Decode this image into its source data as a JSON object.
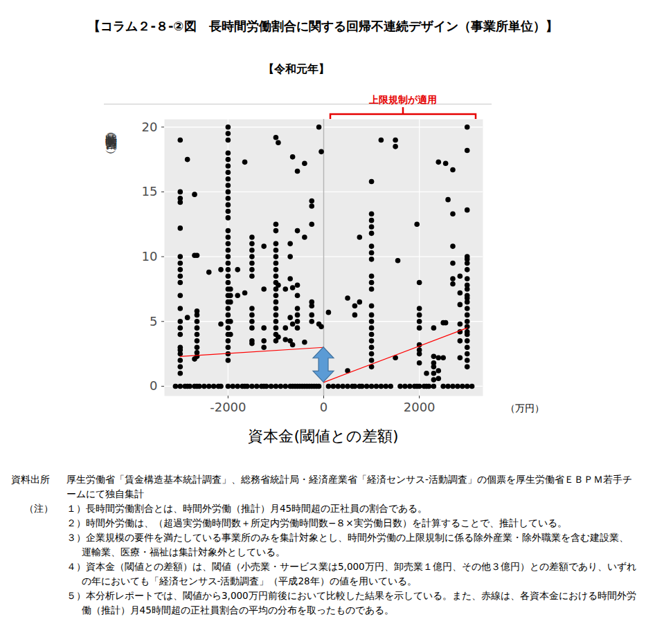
{
  "chart_data": {
    "type": "scatter",
    "title": "【コラム２-８-②図　長時間労働割合に関する回帰不連続デザイン（事業所単位）】",
    "subtitle": "【令和元年】",
    "annotation": "上限規制が適用",
    "x_label": "資本金(閾値との差額)",
    "x_unit": "（万円）",
    "y_label": "長時間労働割合（％）",
    "threshold": 0,
    "xlim": [
      -3330,
      3330
    ],
    "ylim": [
      -0.75,
      20.6
    ],
    "xticks": [
      -2000,
      0,
      2000
    ],
    "yticks": [
      0,
      5,
      10,
      15,
      20
    ],
    "grid": true,
    "series": [
      {
        "type": "scatter",
        "color": "#000000",
        "marker": "circle",
        "x": [
          -3000,
          -3000,
          -3000,
          -3000,
          -3000,
          -3000,
          -3000,
          -3000,
          -3000,
          -3000,
          -3000,
          -3000,
          -3000,
          -3000,
          -3000,
          -3000,
          -3000,
          -3000,
          -3000,
          -3000,
          -3000,
          -3000,
          -2850,
          -2850,
          -2850,
          -2700,
          -2700,
          -2700,
          -2700,
          -2650,
          -2650,
          -2650,
          -2650,
          -2650,
          -2650,
          -2650,
          -2650,
          -2650,
          -2650,
          -2650,
          -2400,
          -2400,
          -2150,
          -2150,
          -2150,
          -2000,
          -2000,
          -2000,
          -2000,
          -2000,
          -2000,
          -2000,
          -2000,
          -2000,
          -2000,
          -2000,
          -2000,
          -2000,
          -2000,
          -2000,
          -2000,
          -2000,
          -2000,
          -2000,
          -2000,
          -2000,
          -2000,
          -2000,
          -2000,
          -2000,
          -2000,
          -2000,
          -2000,
          -2000,
          -2000,
          -2000,
          -2000,
          -2000,
          -2000,
          -2000,
          -2000,
          -1950,
          -1950,
          -1950,
          -1950,
          -1950,
          -1800,
          -1800,
          -1800,
          -1650,
          -1650,
          -1650,
          -1500,
          -1500,
          -1500,
          -1500,
          -1500,
          -1500,
          -1500,
          -1500,
          -1500,
          -1500,
          -1500,
          -1500,
          -1500,
          -1500,
          -1250,
          -1250,
          -1250,
          -1250,
          -1250,
          -1250,
          -1000,
          -1000,
          -1000,
          -1000,
          -1000,
          -1000,
          -1000,
          -1000,
          -1000,
          -1000,
          -1000,
          -1000,
          -1000,
          -1000,
          -1000,
          -1000,
          -1000,
          -1000,
          -1000,
          -1000,
          -950,
          -950,
          -950,
          -800,
          -800,
          -800,
          -800,
          -700,
          -700,
          -700,
          -700,
          -700,
          -700,
          -650,
          -650,
          -650,
          -650,
          -650,
          -550,
          -550,
          -550,
          -550,
          -550,
          -550,
          -550,
          -550,
          -550,
          -400,
          -400,
          -400,
          -400,
          -250,
          -250,
          -250,
          -250,
          -250,
          -250,
          -250,
          -250,
          -100,
          -100,
          -100,
          -50,
          -50,
          -3100,
          -2900,
          -2800,
          -2600,
          -2500,
          -2300,
          -2200,
          -1900,
          -1700,
          -1600,
          -1400,
          -1300,
          -1200,
          -1100,
          -900,
          -600,
          -500,
          -450,
          -350,
          -300,
          -200,
          -150,
          100,
          100,
          500,
          500,
          500,
          650,
          650,
          650,
          750,
          750,
          750,
          1000,
          1000,
          1000,
          1000,
          1000,
          1000,
          1000,
          1000,
          1000,
          1000,
          1000,
          1000,
          1000,
          1000,
          1000,
          1000,
          1000,
          1000,
          1000,
          1000,
          1000,
          1000,
          1200,
          1200,
          1500,
          1500,
          1500,
          1550,
          1950,
          1950,
          2000,
          2000,
          2000,
          2000,
          2000,
          2000,
          2000,
          2000,
          2000,
          2000,
          2150,
          2150,
          2300,
          2300,
          2300,
          2300,
          2300,
          2300,
          2300,
          2400,
          2400,
          2400,
          2400,
          2500,
          2500,
          2500,
          2550,
          2550,
          2600,
          2600,
          2700,
          2700,
          2700,
          2700,
          2700,
          2700,
          2700,
          2850,
          2850,
          2850,
          2850,
          2850,
          2850,
          2850,
          3000,
          3000,
          3000,
          3000,
          3000,
          3000,
          3000,
          3000,
          3000,
          3000,
          3000,
          3000,
          3000,
          3000,
          3000,
          3000,
          3000,
          3000,
          3000,
          3000,
          3000,
          3000,
          3000,
          3000,
          3000,
          200,
          300,
          400,
          600,
          800,
          900,
          1100,
          1300,
          1400,
          1600,
          1700,
          1800,
          1900,
          2100,
          2200,
          2800,
          2900,
          3100
        ],
        "values": [
          19,
          15,
          14.5,
          14.2,
          12.2,
          10,
          9.5,
          9,
          8.5,
          8,
          7,
          6,
          5,
          4.5,
          4,
          3,
          2.8,
          2.5,
          2,
          1.5,
          1,
          0,
          17.5,
          5.3,
          0,
          14.8,
          10.1,
          2.1,
          0,
          10.1,
          5.8,
          5.5,
          5,
          4.5,
          4,
          3.5,
          3,
          2.6,
          2.3,
          0,
          8.8,
          0,
          9,
          4.8,
          0,
          20,
          19.5,
          19,
          18,
          17.5,
          17,
          16.5,
          16,
          15.5,
          15,
          14.5,
          14,
          13.5,
          13,
          12,
          11.5,
          11,
          10.5,
          10,
          9.5,
          9,
          8.5,
          8,
          7.5,
          7,
          6.5,
          6,
          5.5,
          5,
          4.5,
          4,
          3.5,
          3,
          2.5,
          2,
          0,
          7.5,
          7,
          6.5,
          5,
          4,
          9,
          7,
          0,
          17.3,
          7.2,
          0,
          11.5,
          11,
          10.5,
          10,
          9.5,
          9,
          8.5,
          6,
          5.5,
          5,
          4.5,
          3.5,
          3.3,
          0,
          10.8,
          7.5,
          4.5,
          3.5,
          3,
          0,
          19.2,
          12.5,
          12,
          11,
          10.5,
          10,
          9.5,
          9,
          8.5,
          8,
          7.5,
          7,
          6.5,
          6,
          5.5,
          5,
          4.5,
          4,
          3.5,
          0,
          18.8,
          7.8,
          3.8,
          7.5,
          4.5,
          3.6,
          0,
          11,
          10,
          8.3,
          5.3,
          3.5,
          0,
          17.7,
          7.6,
          4.8,
          3.2,
          0,
          16.6,
          12,
          7.8,
          7,
          6,
          5.5,
          5,
          4.5,
          0,
          17.2,
          11.5,
          3.4,
          0,
          14.3,
          13.9,
          12.5,
          6.5,
          6.2,
          5.5,
          5,
          0,
          20,
          4.8,
          0,
          18.1,
          4.6,
          0,
          0,
          0,
          0,
          0,
          0,
          0,
          0,
          0,
          0,
          0,
          0,
          0,
          0,
          0,
          0,
          0,
          0,
          0,
          0,
          0,
          0,
          5.7,
          0,
          6.8,
          1.2,
          0,
          6.2,
          5.5,
          0,
          11.5,
          6.5,
          0,
          15.8,
          13.3,
          12.8,
          12.3,
          11.8,
          10.8,
          10.3,
          9.8,
          8.5,
          8,
          7.5,
          6.2,
          5.5,
          5,
          4.5,
          4,
          3.5,
          3,
          2.5,
          2,
          1.5,
          0,
          19,
          0,
          19,
          18.5,
          2.2,
          9.7,
          12.5,
          0,
          8,
          6,
          5.5,
          5,
          4.5,
          3.2,
          2.8,
          2.5,
          1.8,
          0,
          1,
          0,
          4.5,
          2.3,
          1.8,
          1.5,
          1,
          0.5,
          0,
          17.3,
          2.2,
          1.2,
          0.6,
          4.9,
          2.2,
          0,
          17.2,
          4.9,
          14.4,
          0,
          16.7,
          13.3,
          10.8,
          9.5,
          8.3,
          7.9,
          0,
          8.5,
          7.2,
          6.3,
          4.8,
          4.2,
          3.5,
          2.2,
          20,
          18.2,
          13.6,
          10,
          9.8,
          9.5,
          9,
          8.3,
          7.8,
          7.5,
          7,
          6.8,
          6.5,
          6,
          5.5,
          5,
          4.6,
          4.2,
          4,
          3.5,
          3,
          2.5,
          2,
          1.5,
          0,
          0,
          0,
          0,
          0,
          0,
          0,
          0,
          0,
          0,
          0,
          0,
          0,
          0,
          0,
          0,
          0,
          0,
          0
        ]
      },
      {
        "type": "line",
        "color": "#ff0000",
        "line_style": "solid",
        "x": [
          -3000,
          0
        ],
        "values": [
          2.3,
          3.0
        ]
      },
      {
        "type": "line",
        "color": "#ff0000",
        "line_style": "solid",
        "x": [
          0,
          3000
        ],
        "values": [
          0.3,
          4.5
        ]
      }
    ],
    "source": {
      "label": "資料出所",
      "text": "厚生労働省「賃金構造基本統計調査」、総務省統計局・経済産業省「経済センサス‐活動調査」の個票を厚生労働省ＥＢＰＭ若手チームにて独自集計"
    },
    "notes": {
      "label": "（注）",
      "items": [
        "１）長時間労働割合とは、時間外労働（推計）月45時間超の正社員の割合である。",
        "２）時間外労働は、（超過実労働時間数＋所定内労働時間数−８×実労働日数）を計算することで、推計している。",
        "３）企業規模の要件を満たしている事業所のみを集計対象とし、時間外労働の上限規制に係る除外産業・除外職業を含む建設業、運輸業、医療・福祉は集計対象外としている。",
        "４）資本金（閾値との差額）は、閾値（小売業・サービス業は5,000万円、卸売業１億円、その他３億円）との差額であり、いずれの年においても「経済センサス‐活動調査」（平成28年）の値を用いている。",
        "５）本分析レポートでは、閾値から3,000万円前後において比較した結果を示している。また、赤線は、各資本金における時間外労働（推計）月45時間超の正社員割合の平均の分布を取ったものである。"
      ]
    }
  }
}
